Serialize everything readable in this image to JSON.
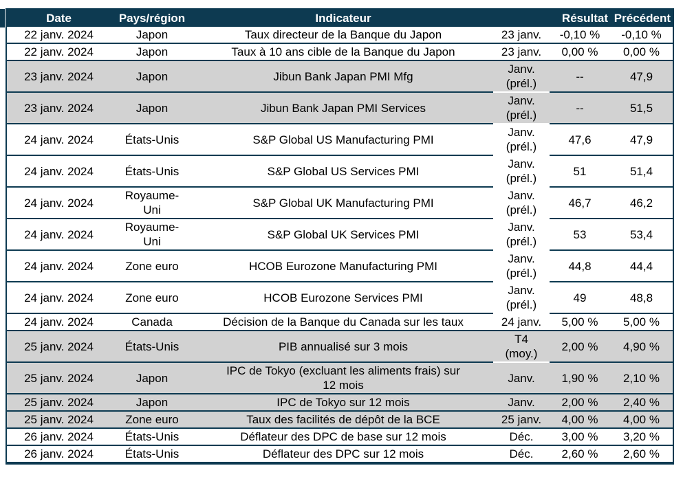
{
  "colors": {
    "header_bg": "#0d3a51",
    "header_text": "#ffffff",
    "border": "#0d3a51",
    "band_gray": "#d2d2d2",
    "row_white": "#ffffff",
    "text": "#000000"
  },
  "header": {
    "date": "Date",
    "region": "Pays/région",
    "indicator": "Indicateur",
    "period": "",
    "result": "Résultat",
    "previous": "Précédent"
  },
  "rows": [
    {
      "date": "22 janv. 2024",
      "region": "Japon",
      "indicator": "Taux directeur de la Banque du Japon",
      "period": "23 janv.",
      "result": "-0,10 %",
      "previous": "-0,10 %",
      "band": "white",
      "period_wrap": false
    },
    {
      "date": "22 janv. 2024",
      "region": "Japon",
      "indicator": "Taux à 10 ans cible de la Banque du Japon",
      "period": "23 janv.",
      "result": "0,00 %",
      "previous": "0,00 %",
      "band": "white",
      "period_wrap": false
    },
    {
      "date": "23 janv. 2024",
      "region": "Japon",
      "indicator": "Jibun Bank Japan PMI Mfg",
      "period": "Janv.\n(prél.)",
      "result": "--",
      "previous": "47,9",
      "band": "gray",
      "period_wrap": true
    },
    {
      "date": "23 janv. 2024",
      "region": "Japon",
      "indicator": "Jibun Bank Japan PMI Services",
      "period": "Janv.\n(prél.)",
      "result": "--",
      "previous": "51,5",
      "band": "gray",
      "period_wrap": true
    },
    {
      "date": "24 janv. 2024",
      "region": "États-Unis",
      "indicator": "S&P Global US Manufacturing PMI",
      "period": "Janv.\n(prél.)",
      "result": "47,6",
      "previous": "47,9",
      "band": "white",
      "period_wrap": true
    },
    {
      "date": "24 janv. 2024",
      "region": "États-Unis",
      "indicator": "S&P Global US Services PMI",
      "period": "Janv.\n(prél.)",
      "result": "51",
      "previous": "51,4",
      "band": "white",
      "period_wrap": true
    },
    {
      "date": "24 janv. 2024",
      "region": "Royaume-\nUni",
      "indicator": "S&P Global UK Manufacturing PMI",
      "period": "Janv.\n(prél.)",
      "result": "46,7",
      "previous": "46,2",
      "band": "white",
      "period_wrap": true
    },
    {
      "date": "24 janv. 2024",
      "region": "Royaume-\nUni",
      "indicator": "S&P Global UK Services PMI",
      "period": "Janv.\n(prél.)",
      "result": "53",
      "previous": "53,4",
      "band": "white",
      "period_wrap": true
    },
    {
      "date": "24 janv. 2024",
      "region": "Zone euro",
      "indicator": "HCOB Eurozone Manufacturing PMI",
      "period": "Janv.\n(prél.)",
      "result": "44,8",
      "previous": "44,4",
      "band": "white",
      "period_wrap": true
    },
    {
      "date": "24 janv. 2024",
      "region": "Zone euro",
      "indicator": "HCOB Eurozone Services PMI",
      "period": "Janv.\n(prél.)",
      "result": "49",
      "previous": "48,8",
      "band": "white",
      "period_wrap": true
    },
    {
      "date": "24 janv. 2024",
      "region": "Canada",
      "indicator": "Décision de la Banque du Canada sur les taux",
      "period": "24 janv.",
      "result": "5,00 %",
      "previous": "5,00 %",
      "band": "white",
      "period_wrap": false
    },
    {
      "date": "25 janv. 2024",
      "region": "États-Unis",
      "indicator": "PIB annualisé sur 3 mois",
      "period": "T4\n(moy.)",
      "result": "2,00 %",
      "previous": "4,90 %",
      "band": "gray",
      "period_wrap": true
    },
    {
      "date": "25 janv. 2024",
      "region": "Japon",
      "indicator": "IPC de Tokyo (excluant les aliments frais) sur\n12 mois",
      "period": "Janv.",
      "result": "1,90 %",
      "previous": "2,10 %",
      "band": "gray",
      "period_wrap": false
    },
    {
      "date": "25 janv. 2024",
      "region": "Japon",
      "indicator": "IPC de Tokyo sur 12 mois",
      "period": "Janv.",
      "result": "2,00 %",
      "previous": "2,40 %",
      "band": "gray",
      "period_wrap": false
    },
    {
      "date": "25 janv. 2024",
      "region": "Zone euro",
      "indicator": "Taux des facilités de dépôt de la BCE",
      "period": "25 janv.",
      "result": "4,00 %",
      "previous": "4,00 %",
      "band": "gray",
      "period_wrap": false
    },
    {
      "date": "26 janv. 2024",
      "region": "États-Unis",
      "indicator": "Déflateur des DPC de base sur 12 mois",
      "period": "Déc.",
      "result": "3,00 %",
      "previous": "3,20 %",
      "band": "white",
      "period_wrap": false
    },
    {
      "date": "26 janv. 2024",
      "region": "États-Unis",
      "indicator": "Déflateur des DPC sur 12 mois",
      "period": "Déc.",
      "result": "2,60 %",
      "previous": "2,60 %",
      "band": "white",
      "period_wrap": false
    }
  ]
}
